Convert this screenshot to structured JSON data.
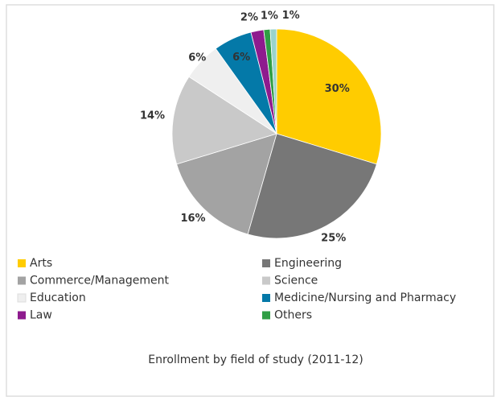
{
  "chart_data": {
    "type": "pie",
    "title": "Enrollment by field of study (2011-12)",
    "categories": [
      "Arts",
      "Engineering",
      "Commerce/Management",
      "Science",
      "Education",
      "Medicine/Nursing and Pharmacy",
      "Law",
      "Others",
      null
    ],
    "values": [
      30,
      25,
      16,
      14,
      6,
      6,
      2,
      1,
      1
    ],
    "value_labels": [
      "30%",
      "25%",
      "16%",
      "14%",
      "6%",
      "6%",
      "2%",
      "1%",
      "1%"
    ],
    "colors": [
      "#ffcc00",
      "#777777",
      "#a3a3a3",
      "#c9c9c9",
      "#efefef",
      "#0479a8",
      "#8e1b8e",
      "#2f9e44",
      "#9ad3cc"
    ],
    "legend": "bottom"
  }
}
